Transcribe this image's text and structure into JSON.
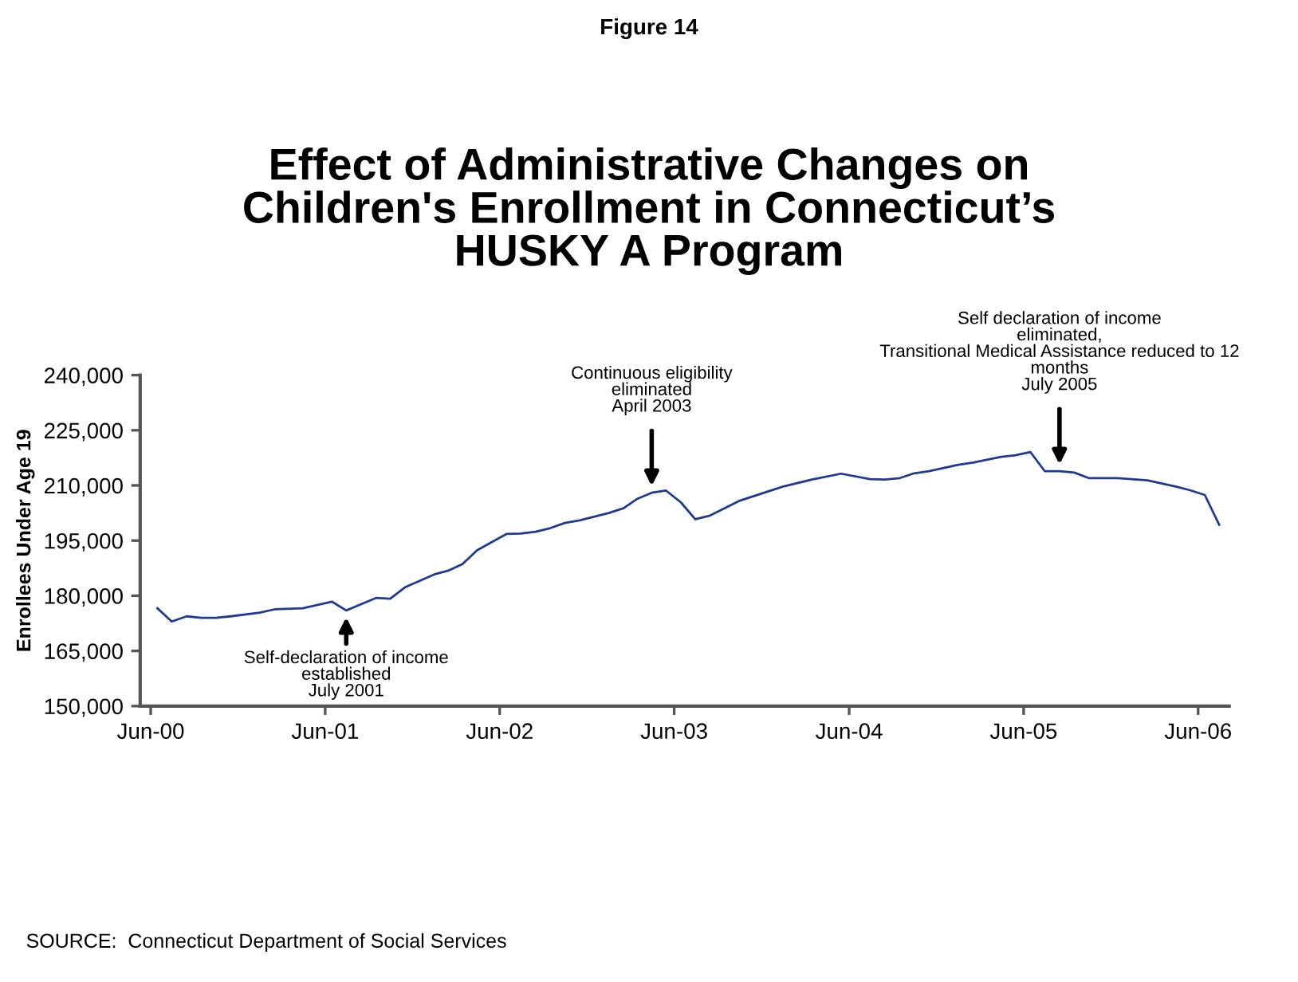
{
  "chart_data": {
    "type": "line",
    "title": "Effect of Administrative Changes on\nChildren's Enrollment in Connecticut’s\nHUSKY A Program",
    "subtitle": "Figure 14",
    "ylabel": "Enrollees Under Age 19",
    "x": [
      "2000-06-15",
      "2000-07-15",
      "2000-08-15",
      "2000-09-15",
      "2000-10-15",
      "2000-11-15",
      "2001-01-15",
      "2001-02-15",
      "2001-04-15",
      "2001-06-15",
      "2001-07-15",
      "2001-09-15",
      "2001-10-15",
      "2001-11-15",
      "2002-01-15",
      "2002-02-15",
      "2002-03-15",
      "2002-04-15",
      "2002-06-15",
      "2002-07-15",
      "2002-08-15",
      "2002-09-15",
      "2002-10-15",
      "2002-11-15",
      "2003-01-15",
      "2003-02-15",
      "2003-03-15",
      "2003-04-15",
      "2003-05-15",
      "2003-06-15",
      "2003-07-15",
      "2003-08-15",
      "2003-10-15",
      "2004-01-15",
      "2004-03-15",
      "2004-05-15",
      "2004-07-15",
      "2004-08-15",
      "2004-09-15",
      "2004-10-15",
      "2004-11-15",
      "2005-01-15",
      "2005-02-15",
      "2005-04-15",
      "2005-05-15",
      "2005-06-15",
      "2005-07-15",
      "2005-08-15",
      "2005-09-15",
      "2005-10-15",
      "2005-12-15",
      "2006-02-15",
      "2006-04-15",
      "2006-05-15",
      "2006-06-15",
      "2006-07-15"
    ],
    "series": [
      {
        "color": "#1f3a93",
        "values": [
          176600,
          173000,
          174400,
          174000,
          174000,
          174400,
          175400,
          176300,
          176600,
          178400,
          176000,
          179400,
          179200,
          182300,
          185800,
          186900,
          188600,
          192400,
          196800,
          196900,
          197400,
          198400,
          199800,
          200500,
          202500,
          203800,
          206300,
          208000,
          208600,
          205400,
          200800,
          201800,
          205800,
          209700,
          211600,
          213200,
          211700,
          211600,
          212000,
          213300,
          213900,
          215600,
          216200,
          217800,
          218200,
          219100,
          213900,
          213900,
          213500,
          212000,
          212000,
          211400,
          209700,
          208700,
          207400,
          199300
        ]
      }
    ],
    "xlim": [
      "2000-05-10",
      "2006-08-05"
    ],
    "xticks": [
      {
        "value": "2000-06-01",
        "label": "Jun-00"
      },
      {
        "value": "2001-06-01",
        "label": "Jun-01"
      },
      {
        "value": "2002-06-01",
        "label": "Jun-02"
      },
      {
        "value": "2003-06-01",
        "label": "Jun-03"
      },
      {
        "value": "2004-06-01",
        "label": "Jun-04"
      },
      {
        "value": "2005-06-01",
        "label": "Jun-05"
      },
      {
        "value": "2006-06-01",
        "label": "Jun-06"
      }
    ],
    "ylim": [
      150000,
      240000
    ],
    "yticks": [
      {
        "value": 150000,
        "label": "150,000"
      },
      {
        "value": 165000,
        "label": "165,000"
      },
      {
        "value": 180000,
        "label": "180,000"
      },
      {
        "value": 195000,
        "label": "195,000"
      },
      {
        "value": 210000,
        "label": "210,000"
      },
      {
        "value": 225000,
        "label": "225,000"
      },
      {
        "value": 240000,
        "label": "240,000"
      }
    ],
    "grid": false,
    "legend": false,
    "marker": "none",
    "line_style": "solid",
    "annotations": [
      {
        "text": "Self-declaration of income\nestablished\nJuly 2001",
        "x": "2001-07-15",
        "y": 176000
      },
      {
        "text": "Continuous eligibility\neliminated\nApril 2003",
        "x": "2003-04-15",
        "y": 208000
      },
      {
        "text": "Self declaration of income\neliminated,\nTransitional Medical Assistance reduced to 12\nmonths\nJuly 2005",
        "x": "2005-08-15",
        "y": 213900
      },
      "SOURCE:  Connecticut Department of Social Services"
    ]
  }
}
